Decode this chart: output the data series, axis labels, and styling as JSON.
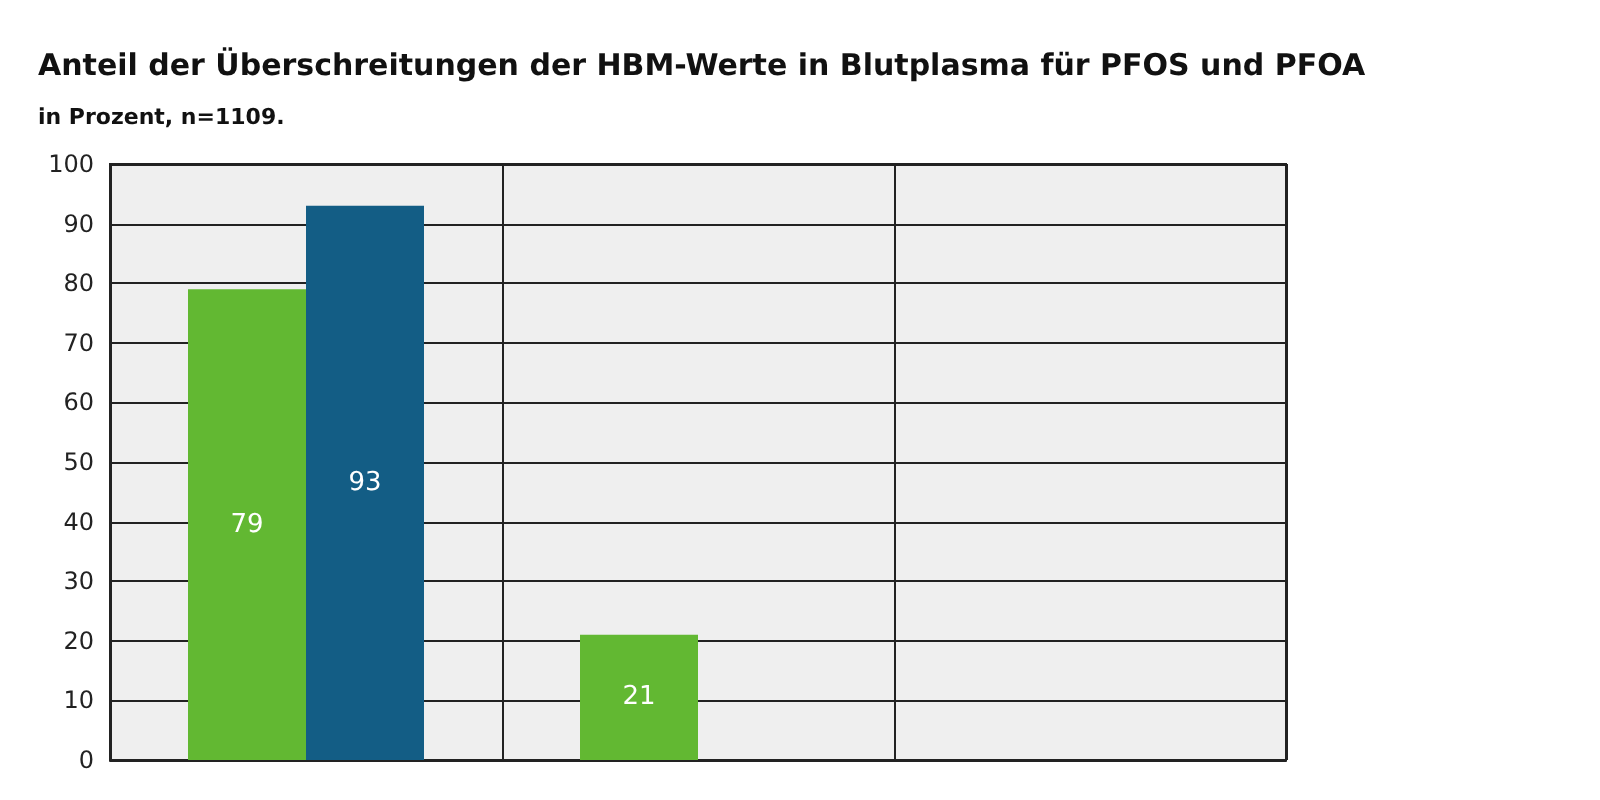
{
  "chart_data": {
    "type": "bar",
    "title": "Anteil der Überschreitungen der HBM-Werte in Blutplasma für PFOS und PFOA",
    "subtitle": "in Prozent, n=1109.",
    "categories": [
      null,
      null,
      null
    ],
    "series": [
      {
        "color": "#62b832",
        "values": [
          79,
          21,
          null
        ]
      },
      {
        "color": "#135d85",
        "values": [
          93,
          null,
          null
        ]
      }
    ],
    "ylim": [
      0,
      100
    ],
    "yticks": [
      0,
      10,
      20,
      30,
      40,
      50,
      60,
      70,
      80,
      90,
      100
    ],
    "grid": true,
    "data_labels": true
  }
}
